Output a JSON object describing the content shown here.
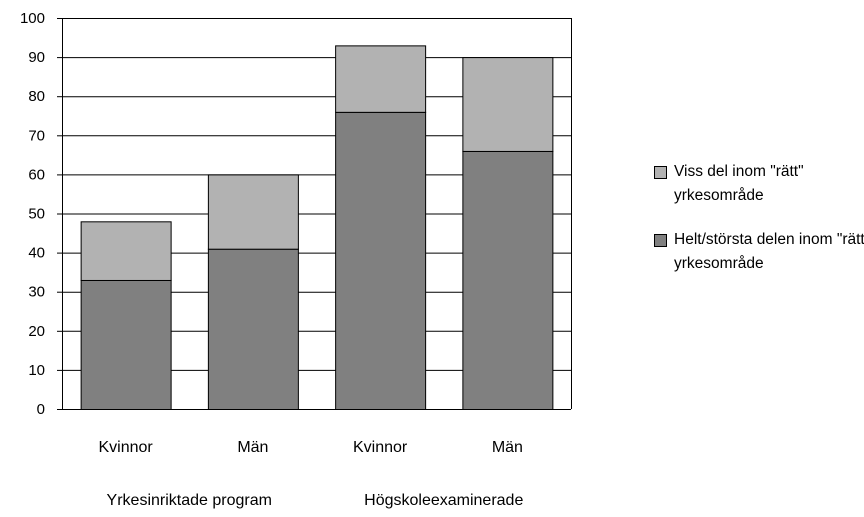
{
  "chart_data": {
    "type": "bar",
    "stacked": true,
    "categories": [
      "Kvinnor",
      "Män",
      "Kvinnor",
      "Män"
    ],
    "groups": [
      {
        "label": "Yrkesinriktade program",
        "categories": [
          0,
          1
        ]
      },
      {
        "label": "Högskoleexaminerade",
        "categories": [
          2,
          3
        ]
      }
    ],
    "series": [
      {
        "name": "Helt/största delen inom \"rätt\" yrkesområde",
        "color": "#808080",
        "values": [
          33,
          41,
          76,
          66
        ]
      },
      {
        "name": "Viss del inom \"rätt\" yrkesområde",
        "color": "#b2b2b2",
        "values": [
          15,
          19,
          17,
          24
        ]
      }
    ],
    "ylim": [
      0,
      100
    ],
    "yticks": [
      0,
      10,
      20,
      30,
      40,
      50,
      60,
      70,
      80,
      90,
      100
    ],
    "grid": true,
    "legend_position": "right"
  },
  "legend": {
    "items": [
      {
        "label": "Viss del inom \"rätt\" yrkesområde",
        "color": "#b2b2b2"
      },
      {
        "label": "Helt/största delen inom \"rätt\" yrkesområde",
        "color": "#808080"
      }
    ]
  }
}
